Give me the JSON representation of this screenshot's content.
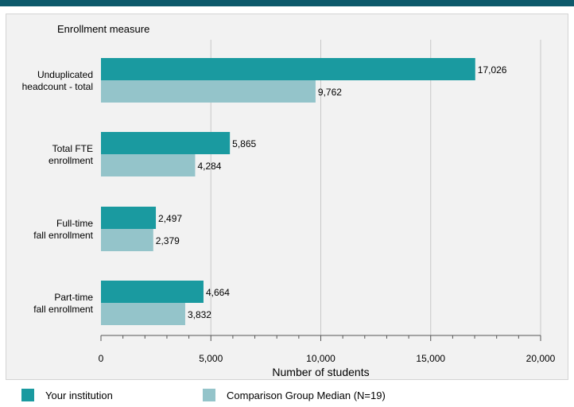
{
  "chart_data": {
    "type": "bar",
    "orientation": "horizontal",
    "y_axis_title": "Enrollment measure",
    "xlabel": "Number of students",
    "xlim": [
      0,
      20000
    ],
    "x_ticks": [
      0,
      5000,
      10000,
      15000,
      20000
    ],
    "x_tick_labels": [
      "0",
      "5,000",
      "10,000",
      "15,000",
      "20,000"
    ],
    "categories": [
      [
        "Unduplicated",
        "headcount - total"
      ],
      [
        "Total FTE",
        "enrollment"
      ],
      [
        "Full-time",
        "fall enrollment"
      ],
      [
        "Part-time",
        "fall enrollment"
      ]
    ],
    "series": [
      {
        "name": "Your institution",
        "color": "#1a9aa0",
        "values": [
          17026,
          5865,
          2497,
          4664
        ],
        "labels": [
          "17,026",
          "5,865",
          "2,497",
          "4,664"
        ]
      },
      {
        "name": "Comparison Group Median (N=19)",
        "color": "#94c4ca",
        "values": [
          9762,
          4284,
          2379,
          3832
        ],
        "labels": [
          "9,762",
          "4,284",
          "2,379",
          "3,832"
        ]
      }
    ],
    "grid": true,
    "legend_position": "bottom"
  }
}
